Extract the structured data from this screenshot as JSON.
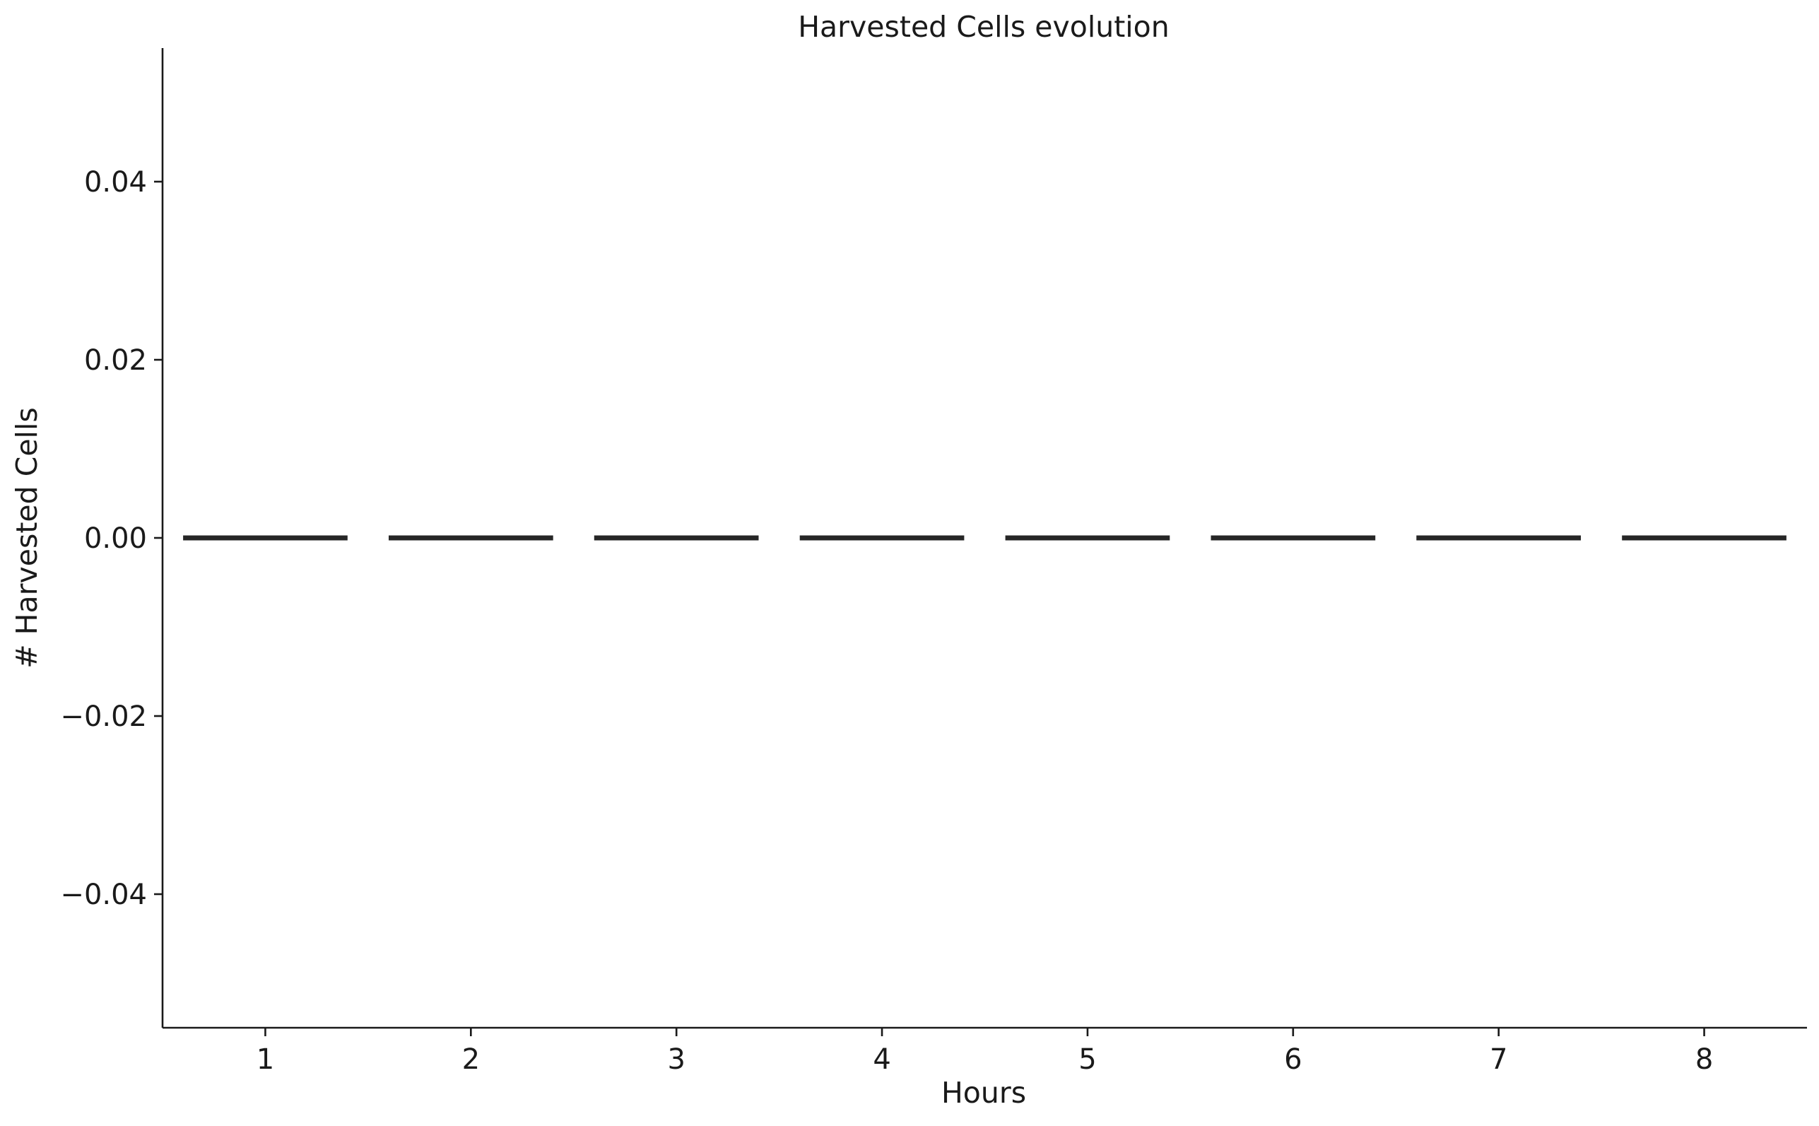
{
  "chart_data": {
    "type": "bar",
    "title": "Harvested Cells evolution",
    "xlabel": "Hours",
    "ylabel": "# Harvested Cells",
    "categories": [
      "1",
      "2",
      "3",
      "4",
      "5",
      "6",
      "7",
      "8"
    ],
    "values": [
      0,
      0,
      0,
      0,
      0,
      0,
      0,
      0
    ],
    "ylim": [
      -0.055,
      0.055
    ],
    "yticks": [
      0.04,
      0.02,
      0.0,
      -0.02,
      -0.04
    ],
    "ytick_labels": [
      "0.04",
      "0.02",
      "0.00",
      "−0.02",
      "−0.04"
    ],
    "grid": false,
    "legend": "none",
    "colors": {
      "bar": "#262626",
      "axis": "#1a1a1a"
    }
  }
}
